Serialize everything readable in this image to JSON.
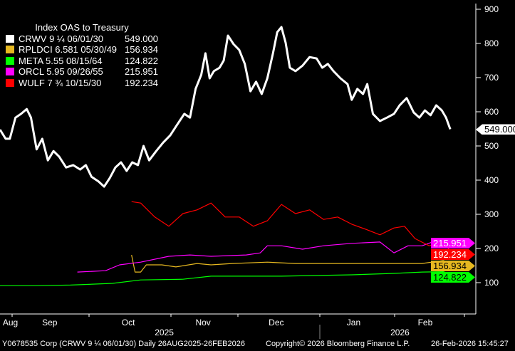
{
  "chart_data": {
    "type": "line",
    "title": "Index OAS to Treasury",
    "ylim": [
      100,
      900
    ],
    "yticks": [
      100,
      200,
      300,
      400,
      500,
      600,
      700,
      800,
      900
    ],
    "ytick_labels": [
      "100",
      "200",
      "300",
      "400",
      "500",
      "600",
      "700",
      "800",
      "900"
    ],
    "x_unit": "trading day since 26AUG2025",
    "xlim": [
      0,
      130
    ],
    "months": [
      {
        "label": "Aug",
        "day": 2.8
      },
      {
        "label": "Sep",
        "day": 14
      },
      {
        "label": "Oct",
        "day": 36.6
      },
      {
        "label": "Nov",
        "day": 57.6
      },
      {
        "label": "Dec",
        "day": 78.4
      },
      {
        "label": "Jan",
        "day": 100.6
      },
      {
        "label": "Feb",
        "day": 120.8
      }
    ],
    "years": [
      {
        "label": "2025",
        "day": 45
      },
      {
        "label": "2026",
        "day": 112
      }
    ],
    "series": [
      {
        "name": "CRWV 9 ¼ 06/01/30",
        "last": "549.000",
        "color": "#ffffff",
        "tag_text": "#000000",
        "points": [
          [
            0,
            548
          ],
          [
            1.6,
            521
          ],
          [
            2.8,
            521
          ],
          [
            4.4,
            583
          ],
          [
            6,
            594
          ],
          [
            7.6,
            608
          ],
          [
            8.8,
            583
          ],
          [
            10.4,
            490
          ],
          [
            12,
            521
          ],
          [
            13.6,
            458
          ],
          [
            15.2,
            485
          ],
          [
            16.8,
            469
          ],
          [
            18.8,
            437
          ],
          [
            20.8,
            444
          ],
          [
            22.8,
            431
          ],
          [
            24.4,
            444
          ],
          [
            26,
            410
          ],
          [
            28,
            396
          ],
          [
            29.6,
            381
          ],
          [
            31.2,
            406
          ],
          [
            32.8,
            437
          ],
          [
            34.4,
            452
          ],
          [
            36,
            427
          ],
          [
            37.6,
            452
          ],
          [
            39.2,
            444
          ],
          [
            40.8,
            500
          ],
          [
            42.4,
            458
          ],
          [
            44.4,
            485
          ],
          [
            46.4,
            510
          ],
          [
            48.4,
            531
          ],
          [
            50.4,
            563
          ],
          [
            52.4,
            594
          ],
          [
            54,
            583
          ],
          [
            55.6,
            667
          ],
          [
            57.2,
            708
          ],
          [
            58.4,
            771
          ],
          [
            59.6,
            698
          ],
          [
            60.8,
            719
          ],
          [
            62.4,
            729
          ],
          [
            63.6,
            750
          ],
          [
            64.8,
            823
          ],
          [
            66.4,
            798
          ],
          [
            68,
            781
          ],
          [
            69.6,
            740
          ],
          [
            71.2,
            660
          ],
          [
            72.8,
            688
          ],
          [
            74.4,
            652
          ],
          [
            76,
            698
          ],
          [
            77.6,
            771
          ],
          [
            78.8,
            833
          ],
          [
            80,
            848
          ],
          [
            81.2,
            802
          ],
          [
            82.4,
            729
          ],
          [
            84,
            719
          ],
          [
            86,
            735
          ],
          [
            88,
            760
          ],
          [
            90,
            756
          ],
          [
            91.6,
            729
          ],
          [
            93.2,
            740
          ],
          [
            94.8,
            719
          ],
          [
            96.8,
            698
          ],
          [
            98.8,
            681
          ],
          [
            100,
            635
          ],
          [
            101.6,
            667
          ],
          [
            103.2,
            652
          ],
          [
            104.4,
            681
          ],
          [
            106,
            594
          ],
          [
            108,
            573
          ],
          [
            110,
            583
          ],
          [
            112,
            594
          ],
          [
            113.6,
            619
          ],
          [
            115.6,
            640
          ],
          [
            117.6,
            598
          ],
          [
            119.2,
            583
          ],
          [
            120.8,
            604
          ],
          [
            122.4,
            590
          ],
          [
            124,
            619
          ],
          [
            125.6,
            604
          ],
          [
            126.8,
            583
          ],
          [
            128,
            549
          ]
        ]
      },
      {
        "name": "RPLDCI 6.581 05/30/49",
        "last": "156.934",
        "color": "#e6b820",
        "tag_text": "#000000",
        "points": [
          [
            37.4,
            181
          ],
          [
            38.4,
            131
          ],
          [
            40,
            131
          ],
          [
            41.6,
            152
          ],
          [
            46,
            152
          ],
          [
            50,
            146
          ],
          [
            56,
            156
          ],
          [
            60,
            152
          ],
          [
            66,
            156
          ],
          [
            76,
            160
          ],
          [
            84,
            156
          ],
          [
            96,
            156
          ],
          [
            108,
            156
          ],
          [
            120,
            156
          ],
          [
            126,
            165
          ],
          [
            128,
            157
          ]
        ]
      },
      {
        "name": "META 5.55 08/15/64",
        "last": "124.822",
        "color": "#00ff00",
        "tag_text": "#000000",
        "points": [
          [
            0,
            91
          ],
          [
            10,
            91
          ],
          [
            20,
            93
          ],
          [
            32,
            98
          ],
          [
            40,
            108
          ],
          [
            52,
            110
          ],
          [
            60,
            119
          ],
          [
            80,
            119
          ],
          [
            100,
            123
          ],
          [
            112,
            127
          ],
          [
            120,
            131
          ],
          [
            126,
            132
          ],
          [
            128,
            125
          ]
        ]
      },
      {
        "name": "ORCL 5.95 09/26/55",
        "last": "215.951",
        "color": "#ff00ff",
        "tag_text": "#ffffff",
        "points": [
          [
            22,
            131
          ],
          [
            30,
            135
          ],
          [
            34,
            152
          ],
          [
            40,
            160
          ],
          [
            48,
            177
          ],
          [
            54,
            181
          ],
          [
            60,
            177
          ],
          [
            70,
            181
          ],
          [
            74,
            187
          ],
          [
            76,
            208
          ],
          [
            80,
            208
          ],
          [
            86,
            198
          ],
          [
            92,
            208
          ],
          [
            100,
            215
          ],
          [
            108,
            219
          ],
          [
            112,
            187
          ],
          [
            116,
            208
          ],
          [
            120,
            208
          ],
          [
            124,
            223
          ],
          [
            128,
            216
          ]
        ]
      },
      {
        "name": "WULF 7 ¾ 10/15/30",
        "last": "192.234",
        "color": "#ff0000",
        "tag_text": "#ffffff",
        "points": [
          [
            37.4,
            337
          ],
          [
            40,
            333
          ],
          [
            44,
            292
          ],
          [
            48,
            265
          ],
          [
            52,
            302
          ],
          [
            56,
            313
          ],
          [
            60,
            333
          ],
          [
            64,
            292
          ],
          [
            68,
            292
          ],
          [
            72,
            265
          ],
          [
            76,
            281
          ],
          [
            80,
            329
          ],
          [
            84,
            302
          ],
          [
            88,
            313
          ],
          [
            92,
            285
          ],
          [
            96,
            292
          ],
          [
            100,
            271
          ],
          [
            104,
            256
          ],
          [
            108,
            240
          ],
          [
            112,
            260
          ],
          [
            115,
            265
          ],
          [
            118,
            229
          ],
          [
            122,
            208
          ],
          [
            126,
            219
          ],
          [
            128,
            192
          ]
        ]
      }
    ]
  },
  "footer": {
    "left": "Y0678535 Corp (CRWV 9 ¼ 06/01/30) Daily 26AUG2025-26FEB2026",
    "center": "Copyright© 2026 Bloomberg Finance L.P.",
    "right": "26-Feb-2026 15:45:27"
  }
}
